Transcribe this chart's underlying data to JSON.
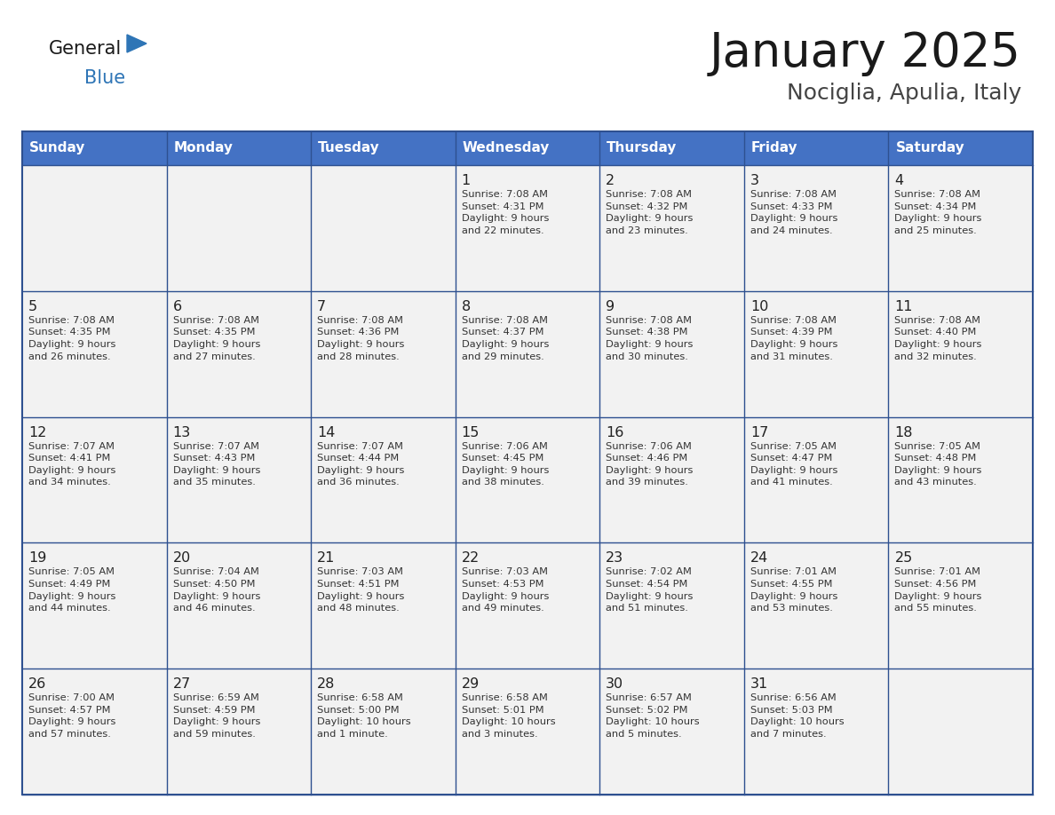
{
  "title": "January 2025",
  "subtitle": "Nociglia, Apulia, Italy",
  "days_of_week": [
    "Sunday",
    "Monday",
    "Tuesday",
    "Wednesday",
    "Thursday",
    "Friday",
    "Saturday"
  ],
  "header_bg": "#4472C4",
  "header_text": "#FFFFFF",
  "row_bg": "#F2F2F2",
  "cell_text_color": "#333333",
  "day_num_color": "#222222",
  "grid_color": "#2E5090",
  "calendar_data": [
    [
      null,
      null,
      null,
      {
        "day": 1,
        "sunrise": "7:08 AM",
        "sunset": "4:31 PM",
        "daylight": "9 hours\nand 22 minutes."
      },
      {
        "day": 2,
        "sunrise": "7:08 AM",
        "sunset": "4:32 PM",
        "daylight": "9 hours\nand 23 minutes."
      },
      {
        "day": 3,
        "sunrise": "7:08 AM",
        "sunset": "4:33 PM",
        "daylight": "9 hours\nand 24 minutes."
      },
      {
        "day": 4,
        "sunrise": "7:08 AM",
        "sunset": "4:34 PM",
        "daylight": "9 hours\nand 25 minutes."
      }
    ],
    [
      {
        "day": 5,
        "sunrise": "7:08 AM",
        "sunset": "4:35 PM",
        "daylight": "9 hours\nand 26 minutes."
      },
      {
        "day": 6,
        "sunrise": "7:08 AM",
        "sunset": "4:35 PM",
        "daylight": "9 hours\nand 27 minutes."
      },
      {
        "day": 7,
        "sunrise": "7:08 AM",
        "sunset": "4:36 PM",
        "daylight": "9 hours\nand 28 minutes."
      },
      {
        "day": 8,
        "sunrise": "7:08 AM",
        "sunset": "4:37 PM",
        "daylight": "9 hours\nand 29 minutes."
      },
      {
        "day": 9,
        "sunrise": "7:08 AM",
        "sunset": "4:38 PM",
        "daylight": "9 hours\nand 30 minutes."
      },
      {
        "day": 10,
        "sunrise": "7:08 AM",
        "sunset": "4:39 PM",
        "daylight": "9 hours\nand 31 minutes."
      },
      {
        "day": 11,
        "sunrise": "7:08 AM",
        "sunset": "4:40 PM",
        "daylight": "9 hours\nand 32 minutes."
      }
    ],
    [
      {
        "day": 12,
        "sunrise": "7:07 AM",
        "sunset": "4:41 PM",
        "daylight": "9 hours\nand 34 minutes."
      },
      {
        "day": 13,
        "sunrise": "7:07 AM",
        "sunset": "4:43 PM",
        "daylight": "9 hours\nand 35 minutes."
      },
      {
        "day": 14,
        "sunrise": "7:07 AM",
        "sunset": "4:44 PM",
        "daylight": "9 hours\nand 36 minutes."
      },
      {
        "day": 15,
        "sunrise": "7:06 AM",
        "sunset": "4:45 PM",
        "daylight": "9 hours\nand 38 minutes."
      },
      {
        "day": 16,
        "sunrise": "7:06 AM",
        "sunset": "4:46 PM",
        "daylight": "9 hours\nand 39 minutes."
      },
      {
        "day": 17,
        "sunrise": "7:05 AM",
        "sunset": "4:47 PM",
        "daylight": "9 hours\nand 41 minutes."
      },
      {
        "day": 18,
        "sunrise": "7:05 AM",
        "sunset": "4:48 PM",
        "daylight": "9 hours\nand 43 minutes."
      }
    ],
    [
      {
        "day": 19,
        "sunrise": "7:05 AM",
        "sunset": "4:49 PM",
        "daylight": "9 hours\nand 44 minutes."
      },
      {
        "day": 20,
        "sunrise": "7:04 AM",
        "sunset": "4:50 PM",
        "daylight": "9 hours\nand 46 minutes."
      },
      {
        "day": 21,
        "sunrise": "7:03 AM",
        "sunset": "4:51 PM",
        "daylight": "9 hours\nand 48 minutes."
      },
      {
        "day": 22,
        "sunrise": "7:03 AM",
        "sunset": "4:53 PM",
        "daylight": "9 hours\nand 49 minutes."
      },
      {
        "day": 23,
        "sunrise": "7:02 AM",
        "sunset": "4:54 PM",
        "daylight": "9 hours\nand 51 minutes."
      },
      {
        "day": 24,
        "sunrise": "7:01 AM",
        "sunset": "4:55 PM",
        "daylight": "9 hours\nand 53 minutes."
      },
      {
        "day": 25,
        "sunrise": "7:01 AM",
        "sunset": "4:56 PM",
        "daylight": "9 hours\nand 55 minutes."
      }
    ],
    [
      {
        "day": 26,
        "sunrise": "7:00 AM",
        "sunset": "4:57 PM",
        "daylight": "9 hours\nand 57 minutes."
      },
      {
        "day": 27,
        "sunrise": "6:59 AM",
        "sunset": "4:59 PM",
        "daylight": "9 hours\nand 59 minutes."
      },
      {
        "day": 28,
        "sunrise": "6:58 AM",
        "sunset": "5:00 PM",
        "daylight": "10 hours\nand 1 minute."
      },
      {
        "day": 29,
        "sunrise": "6:58 AM",
        "sunset": "5:01 PM",
        "daylight": "10 hours\nand 3 minutes."
      },
      {
        "day": 30,
        "sunrise": "6:57 AM",
        "sunset": "5:02 PM",
        "daylight": "10 hours\nand 5 minutes."
      },
      {
        "day": 31,
        "sunrise": "6:56 AM",
        "sunset": "5:03 PM",
        "daylight": "10 hours\nand 7 minutes."
      },
      null
    ]
  ],
  "logo_text_general": "General",
  "logo_text_blue": "Blue",
  "logo_triangle_color": "#2E75B6",
  "logo_general_color": "#1a1a1a"
}
